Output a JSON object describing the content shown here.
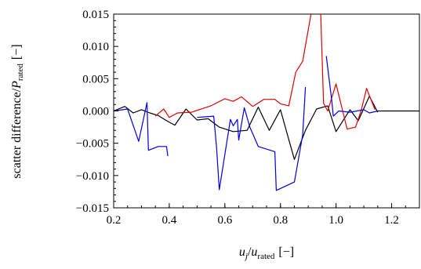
{
  "chart_data": {
    "type": "line",
    "title": "",
    "xlabel": {
      "main": "u",
      "sub1": "j",
      "slash": "/",
      "main2": "u",
      "sub2": "rated",
      "units": "[−]"
    },
    "ylabel": {
      "prefix": "scatter difference/",
      "main": "P",
      "sub": "rated",
      "units": "[−]"
    },
    "xlim": [
      0.2,
      1.3
    ],
    "ylim": [
      -0.015,
      0.015
    ],
    "xticks": [
      {
        "v": 0.2,
        "label": "0.2"
      },
      {
        "v": 0.4,
        "label": "0.4"
      },
      {
        "v": 0.6,
        "label": "0.6"
      },
      {
        "v": 0.8,
        "label": "0.8"
      },
      {
        "v": 1.0,
        "label": "1.0"
      },
      {
        "v": 1.2,
        "label": "1.2"
      }
    ],
    "yticks": [
      {
        "v": 0.015,
        "label": "0.015"
      },
      {
        "v": 0.01,
        "label": "0.010"
      },
      {
        "v": 0.005,
        "label": "0.005"
      },
      {
        "v": 0.0,
        "label": "0.000"
      },
      {
        "v": -0.005,
        "label": "−0.005"
      },
      {
        "v": -0.01,
        "label": "−0.010"
      },
      {
        "v": -0.015,
        "label": "−0.015"
      }
    ],
    "grid": false,
    "series": [
      {
        "color": "#000000",
        "segments": [
          [
            [
              0.2,
              0.0
            ],
            [
              0.24,
              0.0007
            ],
            [
              0.27,
              -0.0003
            ],
            [
              0.3,
              0.0002
            ],
            [
              0.33,
              -0.0003
            ],
            [
              0.36,
              -0.0007
            ],
            [
              0.39,
              -0.0015
            ],
            [
              0.42,
              -0.0022
            ],
            [
              0.46,
              0.0003
            ],
            [
              0.5,
              -0.0014
            ],
            [
              0.54,
              -0.0012
            ],
            [
              0.58,
              -0.0025
            ],
            [
              0.63,
              -0.0032
            ],
            [
              0.68,
              -0.003
            ],
            [
              0.72,
              0.0006
            ],
            [
              0.76,
              -0.003
            ],
            [
              0.8,
              0.0002
            ],
            [
              0.85,
              -0.0075
            ],
            [
              0.89,
              -0.003
            ],
            [
              0.93,
              0.0003
            ],
            [
              0.97,
              0.0008
            ],
            [
              1.0,
              -0.0032
            ],
            [
              1.05,
              0.0002
            ],
            [
              1.08,
              -0.0015
            ],
            [
              1.12,
              0.0023
            ],
            [
              1.15,
              -0.0002
            ]
          ],
          [
            [
              1.15,
              0.0
            ],
            [
              1.3,
              0.0
            ]
          ]
        ]
      },
      {
        "color": "#e00000",
        "segments": [
          [
            [
              0.35,
              -0.0008
            ],
            [
              0.38,
              0.0003
            ],
            [
              0.4,
              -0.001
            ],
            [
              0.43,
              -0.0003
            ],
            [
              0.48,
              -0.0002
            ],
            [
              0.55,
              0.0008
            ],
            [
              0.6,
              0.0019
            ],
            [
              0.63,
              0.0015
            ],
            [
              0.66,
              0.0022
            ],
            [
              0.7,
              0.0007
            ],
            [
              0.74,
              0.0018
            ],
            [
              0.78,
              0.0018
            ],
            [
              0.8,
              0.0011
            ],
            [
              0.83,
              0.0008
            ],
            [
              0.855,
              0.006
            ],
            [
              0.88,
              0.0077
            ],
            [
              0.91,
              0.015
            ]
          ],
          [
            [
              0.945,
              0.015
            ],
            [
              0.955,
              0.0012
            ],
            [
              0.97,
              0.0
            ],
            [
              1.0,
              0.0042
            ],
            [
              1.04,
              -0.0028
            ],
            [
              1.07,
              -0.0025
            ],
            [
              1.09,
              0.0
            ],
            [
              1.11,
              0.0035
            ],
            [
              1.14,
              0.0002
            ]
          ]
        ]
      },
      {
        "color": "#0000e0",
        "segments": [
          [
            [
              0.2,
              0.0
            ],
            [
              0.25,
              0.0003
            ],
            [
              0.29,
              -0.0047
            ],
            [
              0.32,
              0.0013
            ],
            [
              0.325,
              -0.0061
            ],
            [
              0.36,
              -0.0055
            ],
            [
              0.39,
              -0.0055
            ],
            [
              0.395,
              -0.007
            ]
          ],
          [
            [
              0.5,
              -0.001
            ],
            [
              0.56,
              -0.0008
            ],
            [
              0.57,
              -0.0056
            ],
            [
              0.58,
              -0.0122
            ],
            [
              0.62,
              -0.0013
            ],
            [
              0.63,
              -0.0023
            ],
            [
              0.645,
              -0.0013
            ],
            [
              0.65,
              -0.0045
            ],
            [
              0.67,
              0.0005
            ],
            [
              0.69,
              -0.0025
            ],
            [
              0.72,
              -0.0055
            ],
            [
              0.78,
              -0.0063
            ],
            [
              0.785,
              -0.0123
            ],
            [
              0.85,
              -0.011
            ],
            [
              0.88,
              -0.0037
            ],
            [
              0.89,
              0.0037
            ]
          ],
          [
            [
              0.965,
              0.0085
            ],
            [
              0.985,
              0.0015
            ],
            [
              0.99,
              -0.0008
            ],
            [
              1.01,
              0.0
            ],
            [
              1.05,
              -0.0002
            ],
            [
              1.1,
              0.0002
            ],
            [
              1.12,
              -0.0003
            ],
            [
              1.15,
              0.0
            ]
          ]
        ]
      }
    ]
  }
}
